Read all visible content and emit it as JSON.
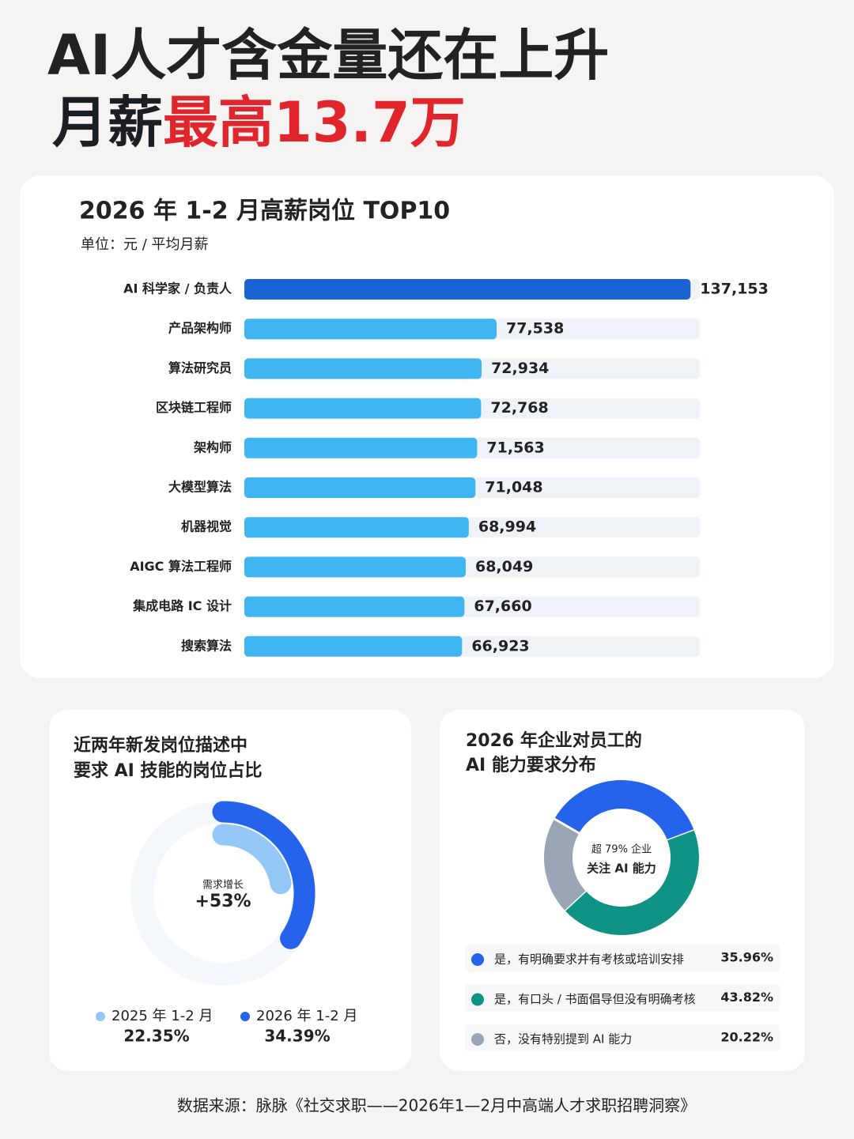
{
  "header": {
    "line1": "AI人才含金量还在上升",
    "line2": "月薪",
    "line2_highlight": "最高13.7万"
  },
  "chart_data": [
    {
      "type": "bar",
      "orientation": "horizontal",
      "title": "2026 年 1-2 月高薪岗位 TOP10",
      "subtitle": "单位：元 / 平均月薪",
      "categories": [
        "AI 科学家 / 负责人",
        "产品架构师",
        "算法研究员",
        "区块链工程师",
        "架构师",
        "大模型算法",
        "机器视觉",
        "AIGC 算法工程师",
        "集成电路 IC 设计",
        "搜索算法"
      ],
      "values": [
        137153,
        77538,
        72934,
        72768,
        71563,
        71048,
        68994,
        68049,
        67660,
        66923
      ],
      "value_labels": [
        "137,153",
        "77,538",
        "72,934",
        "72,768",
        "71,563",
        "71,048",
        "68,994",
        "68,049",
        "67,660",
        "66,923"
      ],
      "colors": [
        "#1a63d2",
        "#3fb6f2",
        "#3fb6f2",
        "#3fb6f2",
        "#3fb6f2",
        "#3fb6f2",
        "#3fb6f2",
        "#3fb6f2",
        "#3fb6f2",
        "#3fb6f2"
      ],
      "xlim": [
        0,
        140000
      ]
    },
    {
      "type": "radial_bar",
      "title": [
        "近两年新发岗位描述中",
        "要求 AI 技能的岗位占比"
      ],
      "center_label": "需求增长",
      "center_value": "+53%",
      "series": [
        {
          "name": "2025 年 1-2 月",
          "value": 22.35,
          "value_label": "22.35%",
          "color": "#93c7f6"
        },
        {
          "name": "2026 年 1-2 月",
          "value": 34.39,
          "value_label": "34.39%",
          "color": "#2563eb"
        }
      ],
      "ylim": [
        0,
        100
      ]
    },
    {
      "type": "donut",
      "title": [
        "2026 年企业对员工的",
        "AI 能力要求分布"
      ],
      "center": [
        "超 79% 企业",
        "关注 AI 能力"
      ],
      "categories": [
        "是，有明确要求并有考核或培训安排",
        "是，有口头 / 书面倡导但没有明确考核",
        "否，没有特别提到 AI 能力"
      ],
      "values": [
        35.96,
        43.82,
        20.22
      ],
      "value_labels": [
        "35.96%",
        "43.82%",
        "20.22%"
      ],
      "colors": [
        "#2563eb",
        "#0e9384",
        "#9aa6b5"
      ]
    }
  ],
  "source": "数据来源：脉脉《社交求职——2026年1—2月中高端人才求职招聘洞察》"
}
